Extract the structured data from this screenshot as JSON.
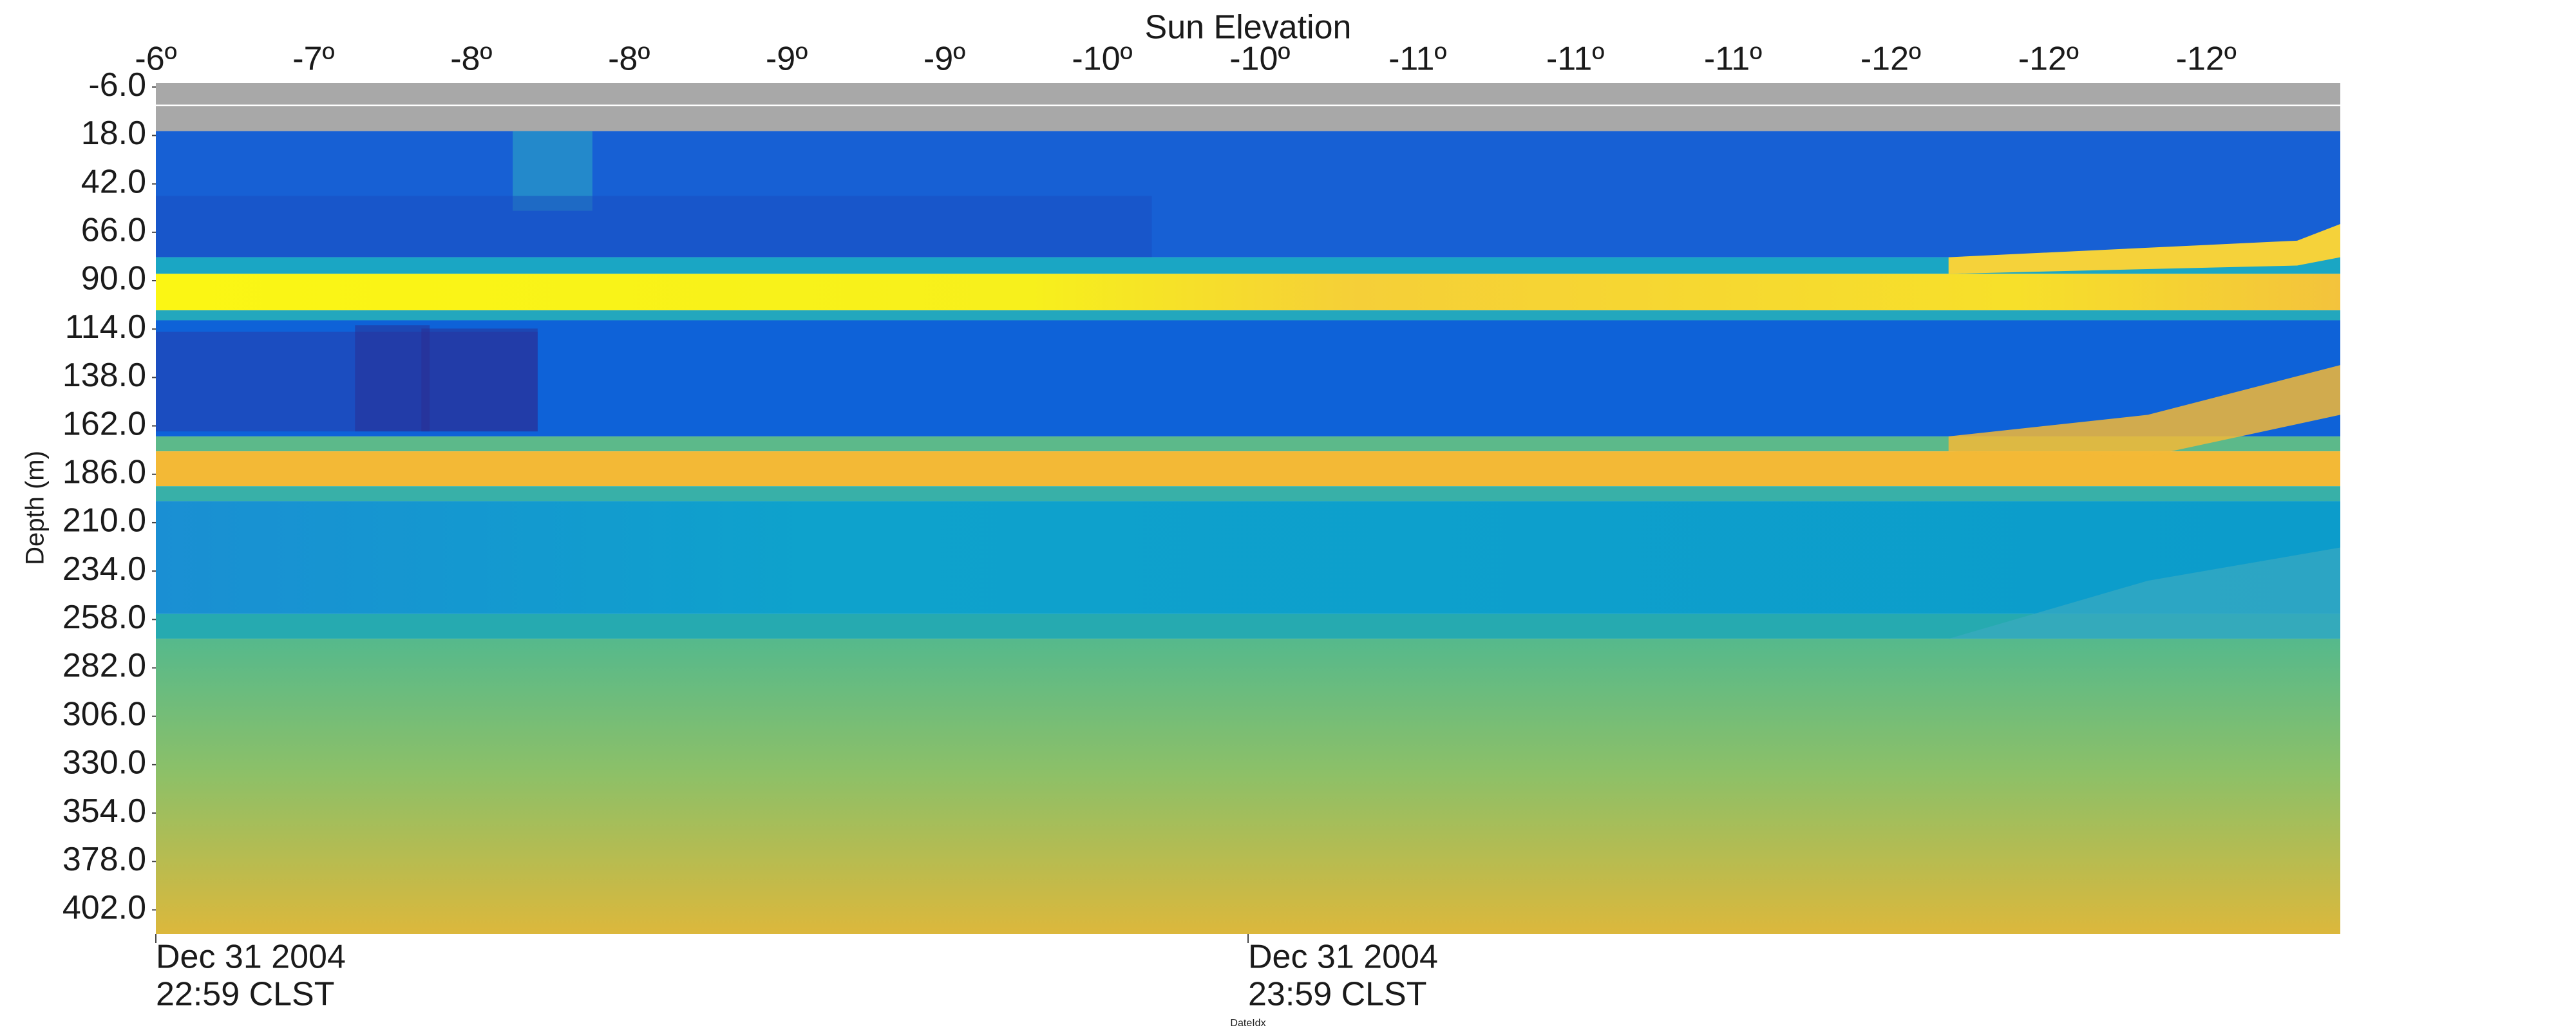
{
  "chart_data": {
    "type": "heatmap",
    "title": "Sun Elevation",
    "y_label": "Depth (m)",
    "x_label": "DateIdx",
    "top_categories": [
      "-6º",
      "-7º",
      "-8º",
      "-8º",
      "-9º",
      "-9º",
      "-10º",
      "-10º",
      "-11º",
      "-11º",
      "-11º",
      "-12º",
      "-12º",
      "-12º"
    ],
    "bottom_categories": [
      [
        "Dec 31 2004",
        "22:59 CLST"
      ],
      [
        "Dec 31 2004",
        "23:59 CLST"
      ]
    ],
    "ylim": [
      -8,
      414
    ],
    "y_reversed": true,
    "yticks": [
      {
        "value": -6,
        "label": "-6.0"
      },
      {
        "value": 18,
        "label": "18.0"
      },
      {
        "value": 42,
        "label": "42.0"
      },
      {
        "value": 66,
        "label": "66.0"
      },
      {
        "value": 90,
        "label": "90.0"
      },
      {
        "value": 114,
        "label": "114.0"
      },
      {
        "value": 138,
        "label": "138.0"
      },
      {
        "value": 162,
        "label": "162.0"
      },
      {
        "value": 186,
        "label": "186.0"
      },
      {
        "value": 210,
        "label": "210.0"
      },
      {
        "value": 234,
        "label": "234.0"
      },
      {
        "value": 258,
        "label": "258.0"
      },
      {
        "value": 282,
        "label": "282.0"
      },
      {
        "value": 306,
        "label": "306.0"
      },
      {
        "value": 330,
        "label": "330.0"
      },
      {
        "value": 354,
        "label": "354.0"
      },
      {
        "value": 378,
        "label": "378.0"
      },
      {
        "value": 402,
        "label": "402.0"
      }
    ]
  }
}
